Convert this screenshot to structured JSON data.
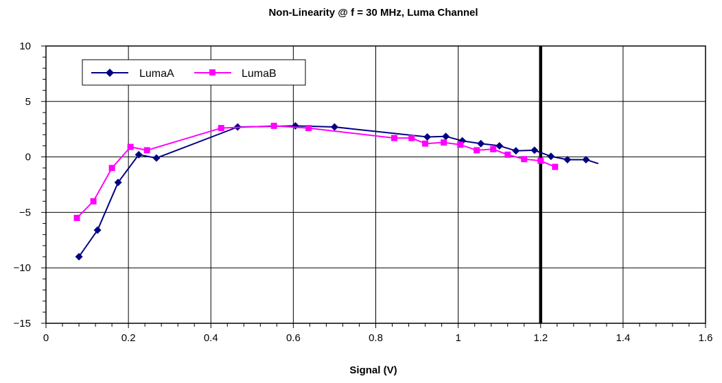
{
  "chart_data": {
    "type": "line",
    "title": "Non-Linearity @ f = 30 MHz, Luma Channel",
    "xlabel": "Signal (V)",
    "ylabel": "",
    "xlim": [
      0,
      1.6
    ],
    "ylim": [
      -15,
      10
    ],
    "x_ticks": [
      "0",
      "0.2",
      "0.4",
      "0.6",
      "0.8",
      "1",
      "1.2",
      "1.4",
      "1.6"
    ],
    "y_ticks": [
      "10",
      "5",
      "0",
      "−5",
      "−10",
      "−15"
    ],
    "grid": true,
    "legend_position": "top-left",
    "vertical_marker_x": 1.2,
    "series": [
      {
        "name": "LumaA",
        "color": "#000080",
        "marker": "diamond",
        "points": [
          [
            0.08,
            -9.0
          ],
          [
            0.125,
            -6.6
          ],
          [
            0.175,
            -2.3
          ],
          [
            0.225,
            0.2
          ],
          [
            0.268,
            -0.1
          ],
          [
            0.465,
            2.7
          ],
          [
            0.605,
            2.8
          ],
          [
            0.7,
            2.7
          ],
          [
            0.925,
            1.8
          ],
          [
            0.97,
            1.85
          ],
          [
            1.01,
            1.45
          ],
          [
            1.055,
            1.2
          ],
          [
            1.1,
            1.0
          ],
          [
            1.14,
            0.55
          ],
          [
            1.185,
            0.6
          ],
          [
            1.225,
            0.05
          ],
          [
            1.265,
            -0.25
          ],
          [
            1.31,
            -0.25
          ]
        ],
        "line_end": [
          1.34,
          -0.6
        ]
      },
      {
        "name": "LumaB",
        "color": "#FF00FF",
        "marker": "square",
        "points": [
          [
            0.075,
            -5.5
          ],
          [
            0.115,
            -4.0
          ],
          [
            0.16,
            -1.0
          ],
          [
            0.205,
            0.9
          ],
          [
            0.245,
            0.6
          ],
          [
            0.425,
            2.6
          ],
          [
            0.553,
            2.8
          ],
          [
            0.637,
            2.6
          ],
          [
            0.845,
            1.7
          ],
          [
            0.887,
            1.7
          ],
          [
            0.92,
            1.2
          ],
          [
            0.965,
            1.3
          ],
          [
            1.005,
            1.1
          ],
          [
            1.045,
            0.6
          ],
          [
            1.085,
            0.7
          ],
          [
            1.12,
            0.2
          ],
          [
            1.16,
            -0.2
          ],
          [
            1.2,
            -0.35
          ],
          [
            1.235,
            -0.9
          ]
        ]
      }
    ]
  }
}
